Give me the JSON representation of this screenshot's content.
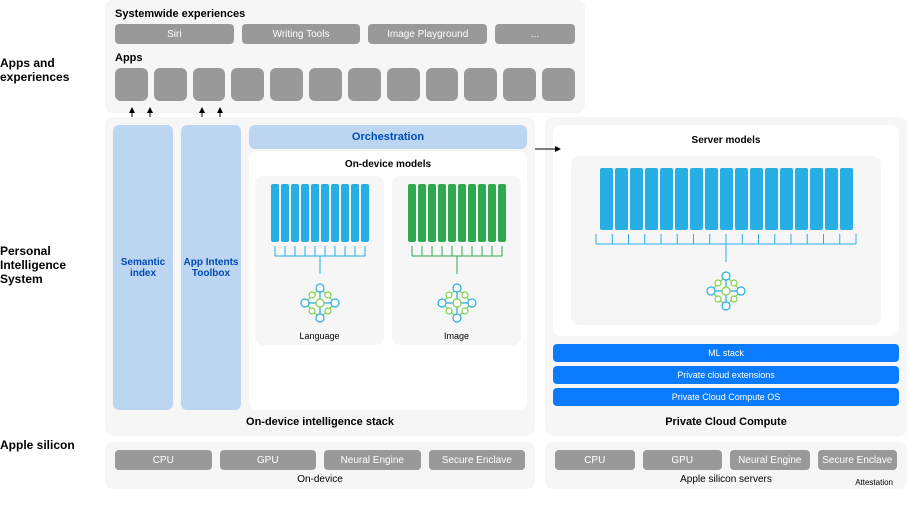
{
  "colors": {
    "panel_bg": "#f6f6f6",
    "chip_bg": "#999999",
    "chip_fg": "#ffffff",
    "light_blue": "#bcd6f2",
    "dark_blue_text": "#004ab3",
    "bar_blue": "#27aee5",
    "bar_green": "#2fa84f",
    "bright_blue": "#0a7aff",
    "arrow": "#000000",
    "nn_green": "#7fd14b",
    "nn_blue": "#27aee5"
  },
  "row_labels": {
    "apps": "Apps and experiences",
    "pis": "Personal Intelligence System",
    "silicon": "Apple silicon"
  },
  "apps_panel": {
    "sw_label": "Systemwide experiences",
    "chips": [
      "Siri",
      "Writing Tools",
      "Image Playground",
      "..."
    ],
    "apps_label": "Apps",
    "app_count": 12
  },
  "device_stack": {
    "semantic_index": "Semantic index",
    "app_intents": "App Intents Toolbox",
    "orchestration": "Orchestration",
    "models_title": "On-device models",
    "language_model": {
      "label": "Language",
      "bar_count": 10,
      "bar_color": "#27aee5"
    },
    "image_model": {
      "label": "Image",
      "bar_count": 10,
      "bar_color": "#2fa84f"
    },
    "caption": "On-device intelligence stack"
  },
  "cloud_stack": {
    "server_title": "Server models",
    "server_model": {
      "bar_count": 17,
      "bar_color": "#27aee5"
    },
    "blue_bars": [
      "ML stack",
      "Private cloud extensions",
      "Private Cloud Compute OS"
    ],
    "caption": "Private Cloud Compute"
  },
  "silicon": {
    "left": {
      "chips": [
        "CPU",
        "GPU",
        "Neural Engine",
        "Secure Enclave"
      ],
      "caption": "On-device"
    },
    "right": {
      "chips": [
        "CPU",
        "GPU",
        "Neural Engine",
        "Secure Enclave"
      ],
      "caption": "Apple silicon servers",
      "attestation": "Attestation"
    }
  }
}
